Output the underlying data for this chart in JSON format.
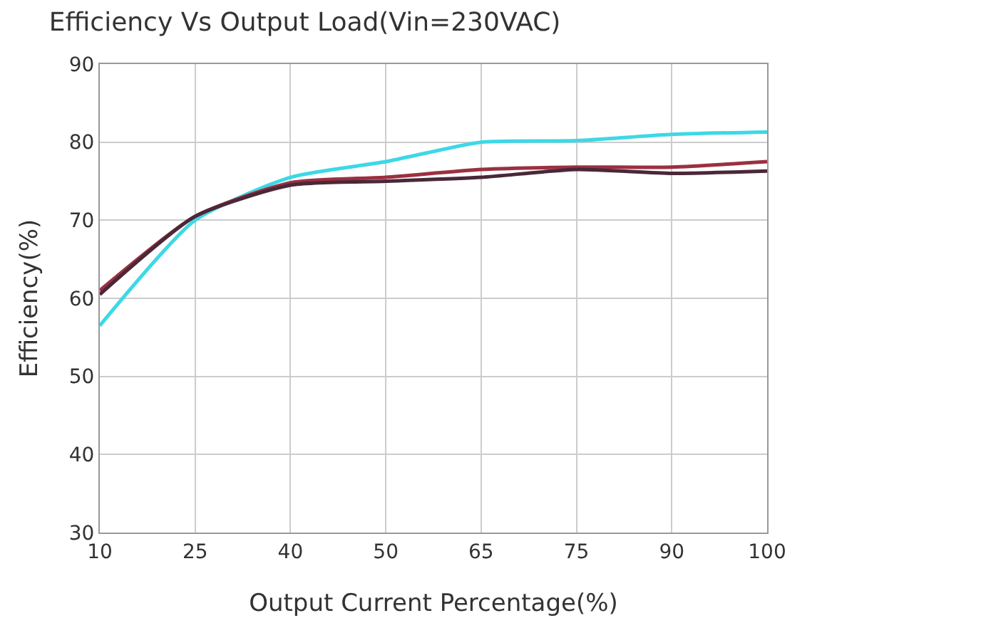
{
  "chart_data": {
    "type": "line",
    "title": "Efficiency Vs Output Load(Vin=230VAC)",
    "xlabel": "Output Current Percentage(%)",
    "ylabel": "Efficiency(%)",
    "categories": [
      "10",
      "25",
      "40",
      "50",
      "65",
      "75",
      "90",
      "100"
    ],
    "series": [
      {
        "color": "#3dd8e6",
        "values": [
          56.5,
          70,
          75.5,
          77.5,
          80,
          80.2,
          81,
          81.3
        ]
      },
      {
        "color": "#9b3040",
        "values": [
          61,
          70.5,
          74.8,
          75.5,
          76.5,
          76.8,
          76.8,
          77.5
        ]
      },
      {
        "color": "#4a2838",
        "values": [
          60.5,
          70.5,
          74.5,
          75,
          75.5,
          76.5,
          76,
          76.3
        ]
      }
    ],
    "ylim": [
      30,
      90
    ],
    "yticks": [
      30,
      40,
      50,
      60,
      70,
      80,
      90
    ],
    "grid": true,
    "marker": "none",
    "line_style": "solid"
  }
}
